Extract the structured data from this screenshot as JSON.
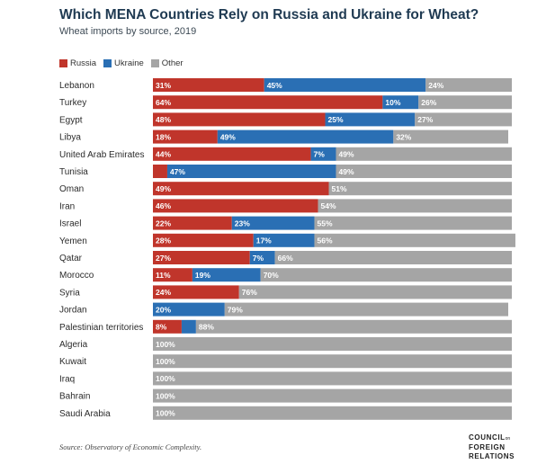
{
  "colors": {
    "russia": "#c0352b",
    "ukraine": "#2a6fb4",
    "other": "#a5a5a5",
    "title": "#1f3a52"
  },
  "source_prefix": "Source:",
  "source_text": "Observatory of Economic Complexity.",
  "logo": {
    "line1": "COUNCIL",
    "line1_small": "on",
    "line2": "FOREIGN",
    "line3": "RELATIONS"
  },
  "chart_data": {
    "type": "bar",
    "orientation": "horizontal",
    "stacked": true,
    "title": "Which MENA Countries Rely on Russia and Ukraine for Wheat?",
    "subtitle": "Wheat imports by source, 2019",
    "legend": [
      "Russia",
      "Ukraine",
      "Other"
    ],
    "legend_position": "top-left",
    "categories": [
      "Lebanon",
      "Turkey",
      "Egypt",
      "Libya",
      "United Arab Emirates",
      "Tunisia",
      "Oman",
      "Iran",
      "Israel",
      "Yemen",
      "Qatar",
      "Morocco",
      "Syria",
      "Jordan",
      "Palestinian territories",
      "Algeria",
      "Kuwait",
      "Iraq",
      "Bahrain",
      "Saudi Arabia"
    ],
    "series": [
      {
        "name": "Russia",
        "values": [
          31,
          64,
          48,
          18,
          44,
          4,
          49,
          46,
          22,
          28,
          27,
          11,
          24,
          0,
          8,
          0,
          0,
          0,
          0,
          0
        ],
        "labels": [
          "31%",
          "64%",
          "48%",
          "18%",
          "44%",
          "",
          "49%",
          "46%",
          "22%",
          "28%",
          "27%",
          "11%",
          "24%",
          "",
          "8%",
          "",
          "",
          "",
          "",
          ""
        ]
      },
      {
        "name": "Ukraine",
        "values": [
          45,
          10,
          25,
          49,
          7,
          47,
          0,
          0,
          23,
          17,
          7,
          19,
          0,
          20,
          4,
          0,
          0,
          0,
          0,
          0
        ],
        "labels": [
          "45%",
          "10%",
          "25%",
          "49%",
          "7%",
          "47%",
          "",
          "",
          "23%",
          "17%",
          "7%",
          "19%",
          "",
          "20%",
          "",
          "",
          "",
          "",
          "",
          ""
        ]
      },
      {
        "name": "Other",
        "values": [
          24,
          26,
          27,
          32,
          49,
          49,
          51,
          54,
          55,
          56,
          66,
          70,
          76,
          79,
          88,
          100,
          100,
          100,
          100,
          100
        ],
        "labels": [
          "24%",
          "26%",
          "27%",
          "32%",
          "49%",
          "49%",
          "51%",
          "54%",
          "55%",
          "56%",
          "66%",
          "70%",
          "76%",
          "79%",
          "88%",
          "100%",
          "100%",
          "100%",
          "100%",
          "100%"
        ]
      }
    ],
    "xlim": [
      0,
      100
    ]
  }
}
